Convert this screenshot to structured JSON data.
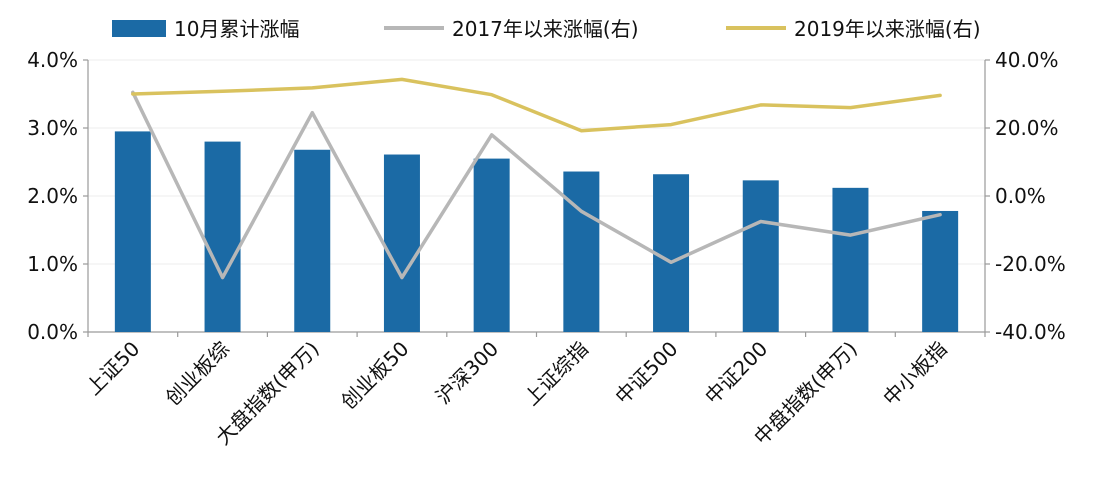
{
  "chart_data": {
    "type": "bar",
    "categories": [
      "上证50",
      "创业板综",
      "大盘指数(申万)",
      "创业板50",
      "沪深300",
      "上证综指",
      "中证500",
      "中证200",
      "中盘指数(申万)",
      "中小板指"
    ],
    "series": [
      {
        "name": "10月累计涨幅",
        "type": "bar",
        "axis": "left",
        "color": "#1b6aa5",
        "values": [
          2.95,
          2.8,
          2.68,
          2.61,
          2.55,
          2.36,
          2.32,
          2.23,
          2.12,
          1.78
        ]
      },
      {
        "name": "2017年以来涨幅(右)",
        "type": "line",
        "axis": "right",
        "color": "#b7b7b7",
        "values": [
          30.5,
          -24.0,
          24.5,
          -24.0,
          18.0,
          -4.5,
          -19.5,
          -7.5,
          -11.5,
          -5.5
        ]
      },
      {
        "name": "2019年以来涨幅(右)",
        "type": "line",
        "axis": "right",
        "color": "#d9c25e",
        "values": [
          30.0,
          30.8,
          31.8,
          34.3,
          29.8,
          19.2,
          21.0,
          26.8,
          26.0,
          29.6
        ]
      }
    ],
    "y_left": {
      "ylim": [
        0,
        4.0
      ],
      "ticks": [
        0,
        1.0,
        2.0,
        3.0,
        4.0
      ],
      "tick_labels": [
        "0.0%",
        "1.0%",
        "2.0%",
        "3.0%",
        "4.0%"
      ]
    },
    "y_right": {
      "ylim": [
        -40,
        40
      ],
      "ticks": [
        -40,
        -20,
        0,
        20,
        40
      ],
      "tick_labels": [
        "-40.0%",
        "-20.0%",
        "0.0%",
        "20.0%",
        "40.0%"
      ]
    },
    "grid": true,
    "legend_position": "top",
    "title": "",
    "xlabel": "",
    "ylabel": ""
  }
}
